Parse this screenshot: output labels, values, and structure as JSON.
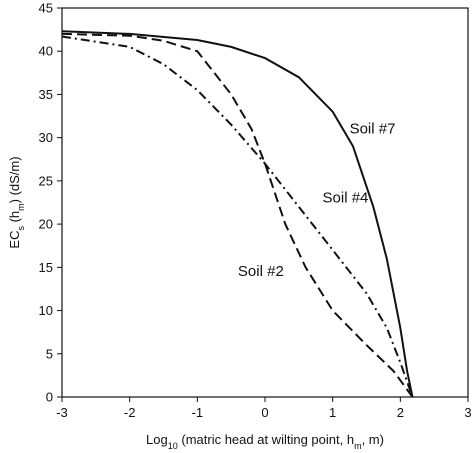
{
  "chart_data": {
    "type": "line",
    "ylabel": [
      {
        "text": "EC",
        "sub": false
      },
      {
        "text": "s",
        "sub": true
      },
      {
        "text": " (h",
        "sub": false
      },
      {
        "text": "m",
        "sub": true
      },
      {
        "text": ") (dS/m)",
        "sub": false
      }
    ],
    "xlabel": [
      {
        "text": "Log",
        "sub": false
      },
      {
        "text": "10",
        "sub": true
      },
      {
        "text": " (matric head at wilting point, h",
        "sub": false
      },
      {
        "text": "m",
        "sub": true
      },
      {
        "text": ", m)",
        "sub": false
      }
    ],
    "xlim": [
      -3,
      3
    ],
    "xticks": [
      -3,
      -2,
      -1,
      0,
      1,
      2,
      3
    ],
    "ylim": [
      0,
      45
    ],
    "yticks": [
      0,
      5,
      10,
      15,
      20,
      25,
      30,
      35,
      40,
      45
    ],
    "series": [
      {
        "name": "Soil #7",
        "color": "#111111",
        "dash": "solid",
        "x": [
          -3,
          -2,
          -1,
          -0.5,
          0,
          0.5,
          1,
          1.3,
          1.6,
          1.8,
          2,
          2.1,
          2.18
        ],
        "values": [
          42.3,
          42,
          41.3,
          40.5,
          39.2,
          37,
          33,
          29,
          22,
          16,
          8,
          3,
          0
        ]
      },
      {
        "name": "Soil #4",
        "color": "#111111",
        "dash": "dashdot",
        "x": [
          -3,
          -2,
          -1.5,
          -1,
          -0.5,
          0,
          0.5,
          1,
          1.5,
          1.8,
          2,
          2.18
        ],
        "values": [
          41.7,
          40.5,
          38.5,
          35.5,
          31.5,
          27,
          22,
          17,
          12,
          8,
          4,
          0
        ]
      },
      {
        "name": "Soil #2",
        "color": "#111111",
        "dash": "dashed",
        "x": [
          -3,
          -2,
          -1.5,
          -1,
          -0.5,
          -0.2,
          0,
          0.3,
          0.6,
          1,
          1.5,
          1.9,
          2.18
        ],
        "values": [
          42,
          41.8,
          41.2,
          40,
          35,
          31,
          27,
          20,
          15,
          10,
          6,
          3,
          0
        ]
      }
    ]
  }
}
